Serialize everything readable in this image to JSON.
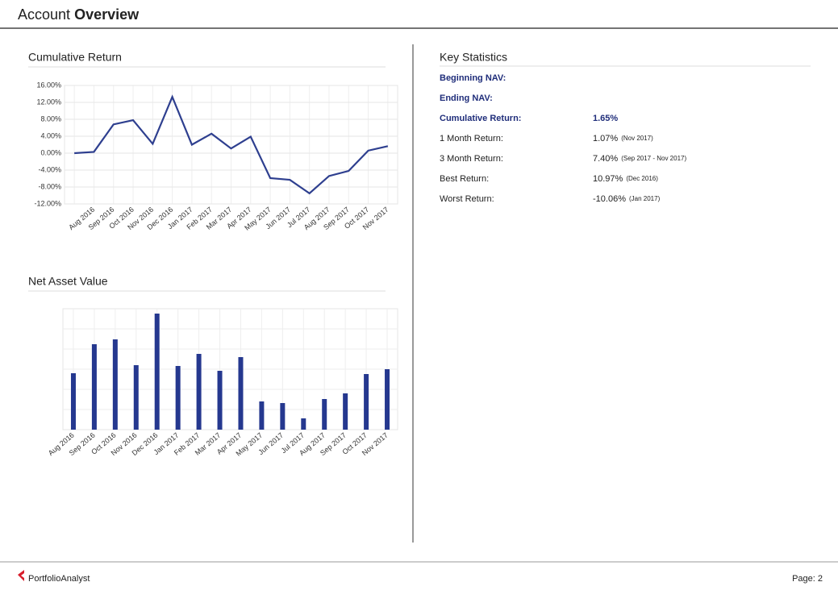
{
  "header": {
    "title": "Account",
    "title_bold": "Overview"
  },
  "chart_data": [
    {
      "type": "line",
      "title": "Cumulative Return",
      "color": "#2e3f8f",
      "grid": true,
      "categories": [
        null,
        "Aug 2016",
        "Sep 2016",
        "Oct 2016",
        "Nov 2016",
        "Dec 2016",
        "Jan 2017",
        "Feb 2017",
        "Mar 2017",
        "Apr 2017",
        "May 2017",
        "Jun 2017",
        "Jul 2017",
        "Aug 2017",
        "Sep 2017",
        "Oct 2017",
        "Nov 2017"
      ],
      "values": [
        0.0,
        0.3,
        6.8,
        7.8,
        2.2,
        13.3,
        2.0,
        4.6,
        1.1,
        3.9,
        -5.9,
        -6.3,
        -9.5,
        -5.4,
        -4.2,
        0.6,
        1.65
      ],
      "ylim": [
        -12,
        16
      ],
      "yticks": [
        {
          "value": -12,
          "label": "-12.00%"
        },
        {
          "value": -8,
          "label": "-8.00%"
        },
        {
          "value": -4,
          "label": "-4.00%"
        },
        {
          "value": 0,
          "label": "0.00%"
        },
        {
          "value": 4,
          "label": "4.00%"
        },
        {
          "value": 8,
          "label": "8.00%"
        },
        {
          "value": 12,
          "label": "12.00%"
        },
        {
          "value": 16,
          "label": "16.00%"
        }
      ]
    },
    {
      "type": "bar",
      "title": "Net Asset Value",
      "color": "#25388f",
      "grid": true,
      "categories": [
        "Aug 2016",
        "Sep 2016",
        "Oct 2016",
        "Nov 2016",
        "Dec 2016",
        "Jan 2017",
        "Feb 2017",
        "Mar 2017",
        "Apr 2017",
        "May 2017",
        "Jun 2017",
        "Jul 2017",
        "Aug 2017",
        "Sep 2017",
        "Oct 2017",
        "Nov 2017"
      ],
      "values": [
        70,
        106,
        112,
        80,
        144,
        79,
        94,
        73,
        90,
        35,
        33,
        14,
        38,
        45,
        69,
        75
      ],
      "ylim": [
        0,
        150
      ]
    }
  ],
  "key_statistics": {
    "title": "Key Statistics",
    "rows": [
      {
        "label": "Beginning NAV:",
        "bold": true
      },
      {
        "label": "Ending NAV:",
        "bold": true
      },
      {
        "label": "Cumulative Return:",
        "value": "1.65%",
        "bold": true
      },
      {
        "label": "1 Month Return:",
        "value": "1.07%",
        "note": "(Nov 2017)"
      },
      {
        "label": "3 Month Return:",
        "value": "7.40%",
        "note": "(Sep 2017 - Nov 2017)"
      },
      {
        "label": "Best Return:",
        "value": "10.97%",
        "note": "(Dec 2016)"
      },
      {
        "label": "Worst Return:",
        "value": "-10.06%",
        "note": "(Jan 2017)"
      }
    ]
  },
  "footer": {
    "brand": "PortfolioAnalyst",
    "page": "Page: 2"
  }
}
